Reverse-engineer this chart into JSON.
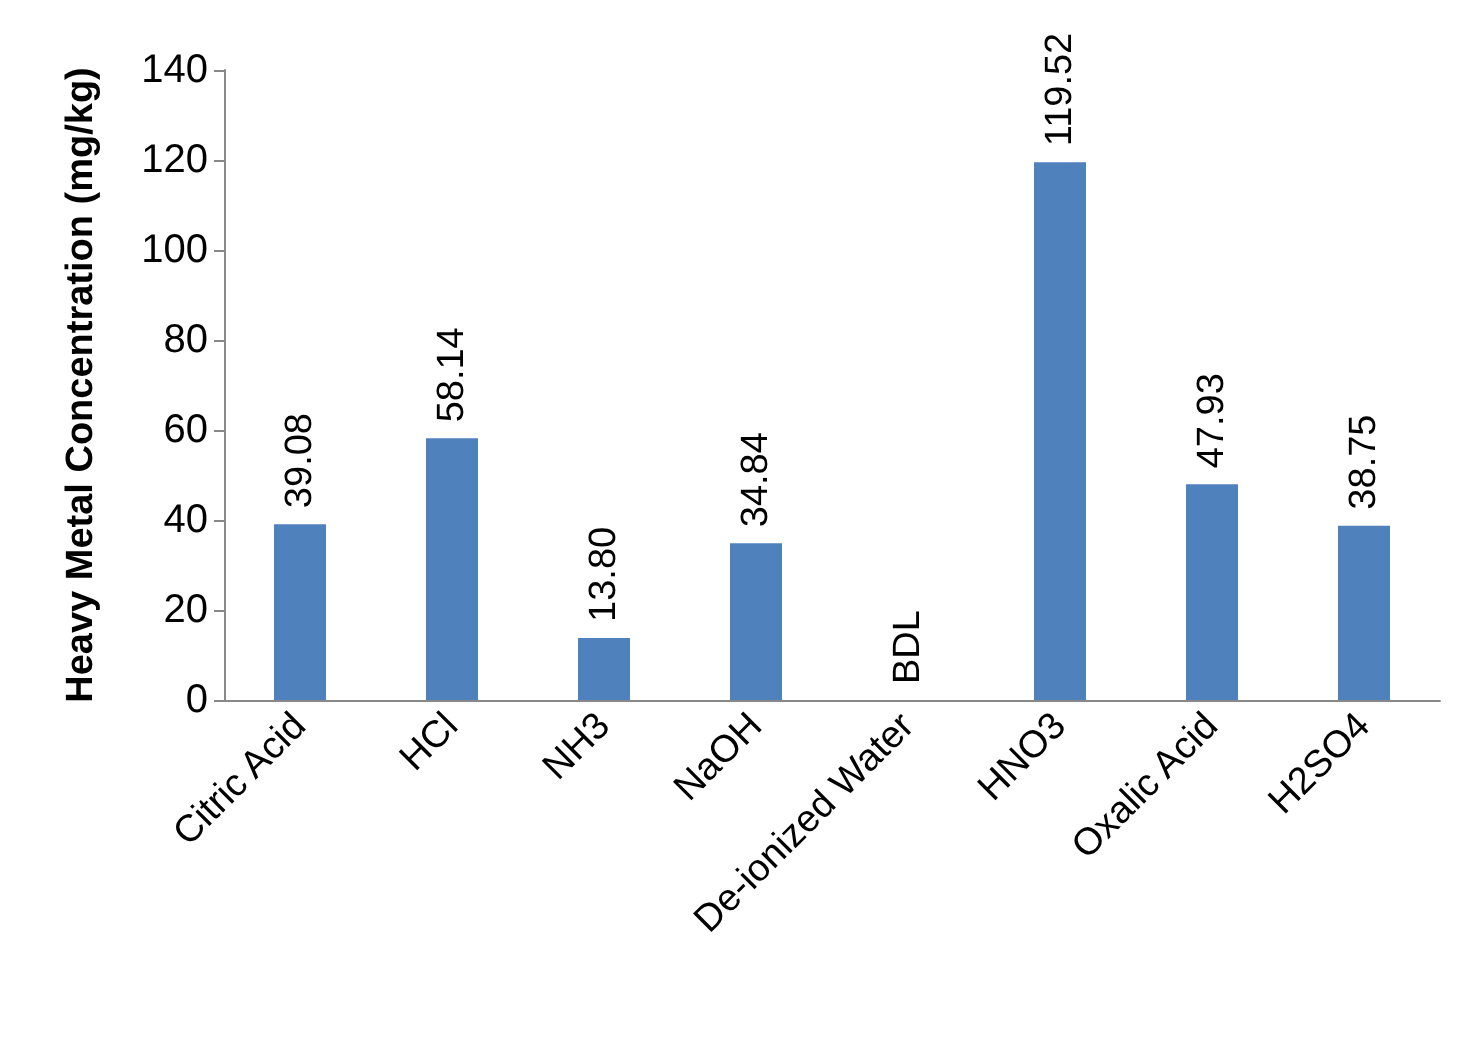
{
  "chart_data": {
    "type": "bar",
    "ylabel": "Heavy Metal Concentration (mg/kg)",
    "categories": [
      "Citric Acid",
      "HCl",
      "NH3",
      "NaOH",
      "De-ionized Water",
      "HNO3",
      "Oxalic Acid",
      "H2SO4"
    ],
    "values": [
      39.08,
      58.14,
      13.8,
      34.84,
      null,
      119.52,
      47.93,
      38.75
    ],
    "value_labels": [
      "39.08",
      "58.14",
      "13.80",
      "34.84",
      "BDL",
      "119.52",
      "47.93",
      "38.75"
    ],
    "color": "#4f81bd",
    "ylim": [
      0,
      140
    ],
    "yticks": [
      0,
      20,
      40,
      60,
      80,
      100,
      120,
      140
    ],
    "grid": false
  }
}
